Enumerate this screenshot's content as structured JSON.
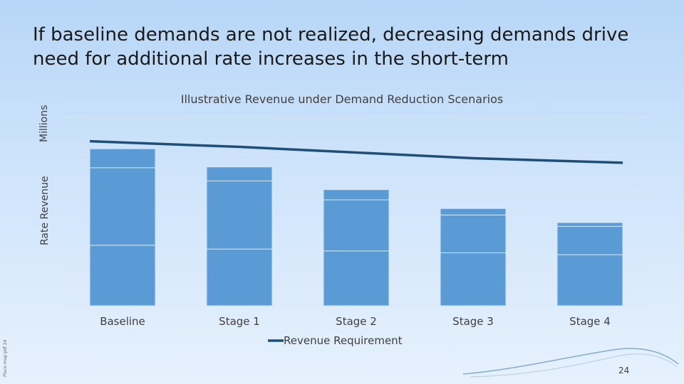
{
  "slide": {
    "title": "If baseline demands are not realized, decreasing demands drive need for additional rate increases in the short-term",
    "page_number": "24",
    "footer_note": "Place map pdf 24"
  },
  "colors": {
    "bar": "#5b9bd5",
    "bar_divider": "#cfe3f6",
    "line": "#1f4e79",
    "grid": "#d9e6f3"
  },
  "chart_data": {
    "type": "bar",
    "title": "Illustrative Revenue under Demand Reduction Scenarios",
    "ylabel": "Rate Revenue",
    "yunit": "Millions",
    "xlabel": "",
    "ylim": [
      0,
      5
    ],
    "grid": true,
    "legend": "bottom",
    "categories": [
      "Baseline",
      "Stage 1",
      "Stage 2",
      "Stage 3",
      "Stage 4"
    ],
    "bar_segments": [
      [
        1.6,
        2.05,
        0.5
      ],
      [
        1.5,
        1.8,
        0.37
      ],
      [
        1.45,
        1.35,
        0.27
      ],
      [
        1.4,
        1.0,
        0.17
      ],
      [
        1.35,
        0.75,
        0.1
      ]
    ],
    "series": [
      {
        "name": "Revenue Requirement",
        "type": "line",
        "values": [
          4.35,
          4.2,
          4.05,
          3.9,
          3.78
        ]
      }
    ]
  }
}
